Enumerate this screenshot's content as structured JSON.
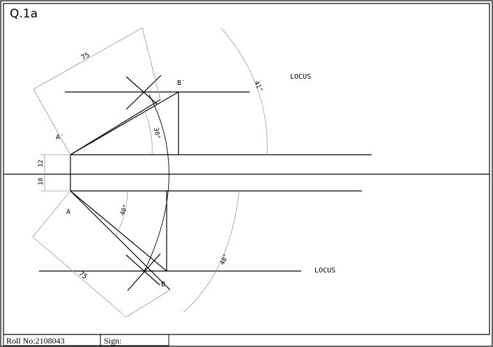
{
  "sheet": {
    "title": "Q.1a",
    "colors": {
      "line": "#000000",
      "dimension": "#9a9a9a",
      "background": "#ffffff"
    }
  },
  "labels": {
    "a_prime": "A′",
    "b_prime": "B′",
    "a": "A",
    "b": "B",
    "locus_top": "LOCUS",
    "locus_bottom": "LOCUS"
  },
  "dimensions": {
    "length_top": "75",
    "length_bottom": "75",
    "dist_above_xy": "12",
    "dist_in_front_xy": "10",
    "angle_top_small": "30°",
    "angle_top_large": "41°",
    "angle_bottom_small": "40°",
    "angle_bottom_large": "48°"
  },
  "title_block": {
    "roll_no": "Roll No:2108043",
    "sign": "Sign:"
  }
}
